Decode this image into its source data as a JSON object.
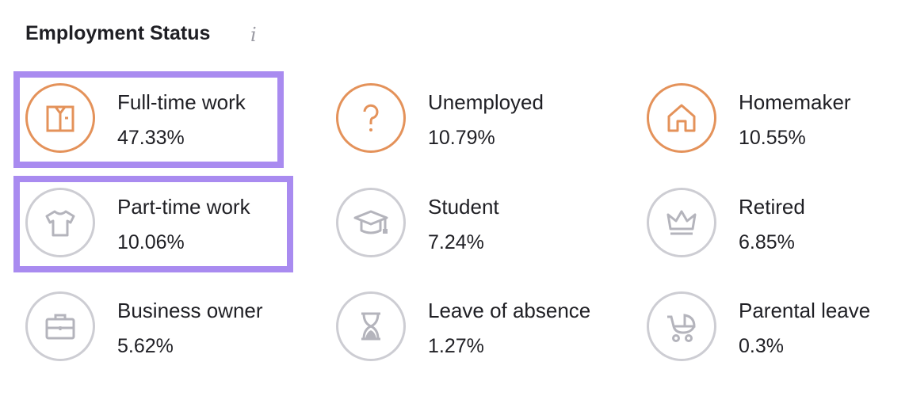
{
  "title": "Employment Status",
  "info_icon": "info-icon",
  "accent": "#e4925a",
  "inactive": "#b4b4bc",
  "highlight": "#a98bf0",
  "items": [
    {
      "label": "Full-time work",
      "value": "47.33%",
      "icon": "shirt-icon",
      "active": true
    },
    {
      "label": "Unemployed",
      "value": "10.79%",
      "icon": "question-icon",
      "active": true
    },
    {
      "label": "Homemaker",
      "value": "10.55%",
      "icon": "house-icon",
      "active": true
    },
    {
      "label": "Part-time work",
      "value": "10.06%",
      "icon": "tshirt-icon",
      "active": false
    },
    {
      "label": "Student",
      "value": "7.24%",
      "icon": "graduation-cap-icon",
      "active": false
    },
    {
      "label": "Retired",
      "value": "6.85%",
      "icon": "crown-icon",
      "active": false
    },
    {
      "label": "Business owner",
      "value": "5.62%",
      "icon": "briefcase-icon",
      "active": false
    },
    {
      "label": "Leave of absence",
      "value": "1.27%",
      "icon": "hourglass-icon",
      "active": false
    },
    {
      "label": "Parental leave",
      "value": "0.3%",
      "icon": "stroller-icon",
      "active": false
    }
  ]
}
